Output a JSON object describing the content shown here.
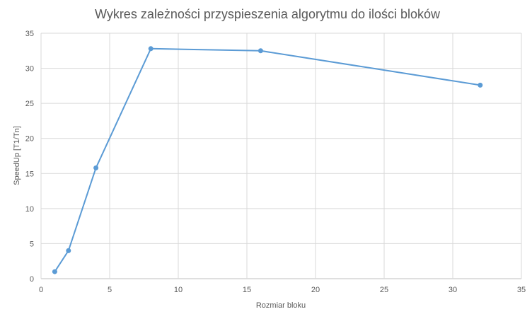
{
  "chart_data": {
    "type": "scatter",
    "title": "Wykres zależności przyspieszenia algorytmu do ilości bloków",
    "xlabel": "Rozmiar bloku",
    "ylabel": "SpeedUp [T1/Tn]",
    "xlim": [
      0,
      35
    ],
    "ylim": [
      0,
      35
    ],
    "xticks": [
      0,
      5,
      10,
      15,
      20,
      25,
      30,
      35
    ],
    "yticks": [
      0,
      5,
      10,
      15,
      20,
      25,
      30,
      35
    ],
    "grid": true,
    "legend": "none",
    "series": [
      {
        "color": "#5b9bd5",
        "x": [
          1,
          2,
          4,
          8,
          16,
          32
        ],
        "y": [
          1.0,
          4.0,
          15.8,
          32.8,
          32.5,
          27.6
        ]
      }
    ]
  }
}
